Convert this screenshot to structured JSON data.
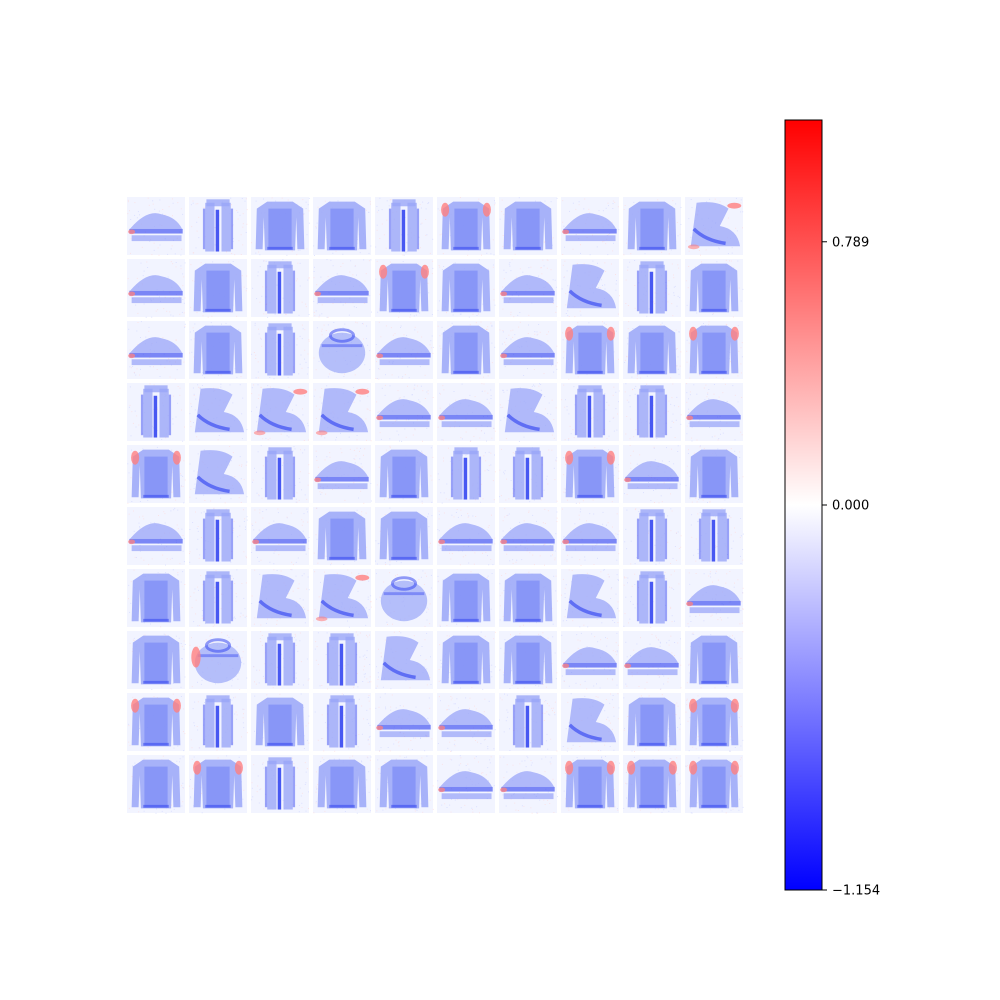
{
  "chart_data": {
    "type": "heatmap",
    "grid": {
      "rows": 10,
      "cols": 10
    },
    "tiles": [
      [
        "shoe",
        "trouser",
        "pullover",
        "pullover",
        "trouser",
        "pullover-red-shoulders",
        "pullover",
        "shoe",
        "pullover",
        "boot-red"
      ],
      [
        "shoe",
        "pullover",
        "trouser",
        "shoe",
        "pullover-red-shoulders",
        "pullover",
        "shoe",
        "boot",
        "trouser",
        "pullover"
      ],
      [
        "shoe",
        "pullover",
        "trouser",
        "bag",
        "shoe",
        "pullover",
        "shoe",
        "pullover-red-shoulders",
        "pullover",
        "pullover-red-shoulders"
      ],
      [
        "trouser",
        "boot",
        "boot-red",
        "boot-red",
        "shoe",
        "shoe",
        "boot",
        "trouser",
        "trouser",
        "shoe"
      ],
      [
        "pullover-red-shoulders",
        "boot",
        "trouser",
        "shoe",
        "pullover",
        "trouser",
        "trouser",
        "pullover-red-shoulders",
        "shoe",
        "pullover"
      ],
      [
        "shoe",
        "trouser",
        "shoe",
        "pullover",
        "pullover",
        "shoe",
        "shoe",
        "shoe",
        "trouser",
        "trouser"
      ],
      [
        "pullover",
        "trouser",
        "boot",
        "boot-red",
        "bag",
        "pullover",
        "pullover",
        "boot",
        "trouser",
        "shoe"
      ],
      [
        "pullover",
        "bag-red",
        "trouser",
        "trouser",
        "boot",
        "pullover",
        "pullover",
        "shoe",
        "shoe",
        "pullover"
      ],
      [
        "pullover-red-shoulders",
        "trouser",
        "pullover",
        "trouser",
        "shoe",
        "shoe",
        "trouser",
        "boot",
        "pullover",
        "pullover-red-shoulders"
      ],
      [
        "pullover",
        "pullover-red-shoulders",
        "trouser",
        "pullover",
        "pullover",
        "shoe",
        "shoe",
        "pullover-red-shoulders",
        "pullover-red-shoulders",
        "pullover-red-shoulders"
      ]
    ],
    "colormap": "bwr",
    "colors": {
      "min": "#0000ff",
      "mid": "#ffffff",
      "max": "#ff0000"
    },
    "vmin": -1.154,
    "vmax": 1.154,
    "colorbar": {
      "ticks": [
        {
          "value": 0.789,
          "label": "0.789"
        },
        {
          "value": 0.0,
          "label": "0.000"
        },
        {
          "value": -1.154,
          "label": "−1.154"
        }
      ]
    },
    "axes_visible": false
  }
}
